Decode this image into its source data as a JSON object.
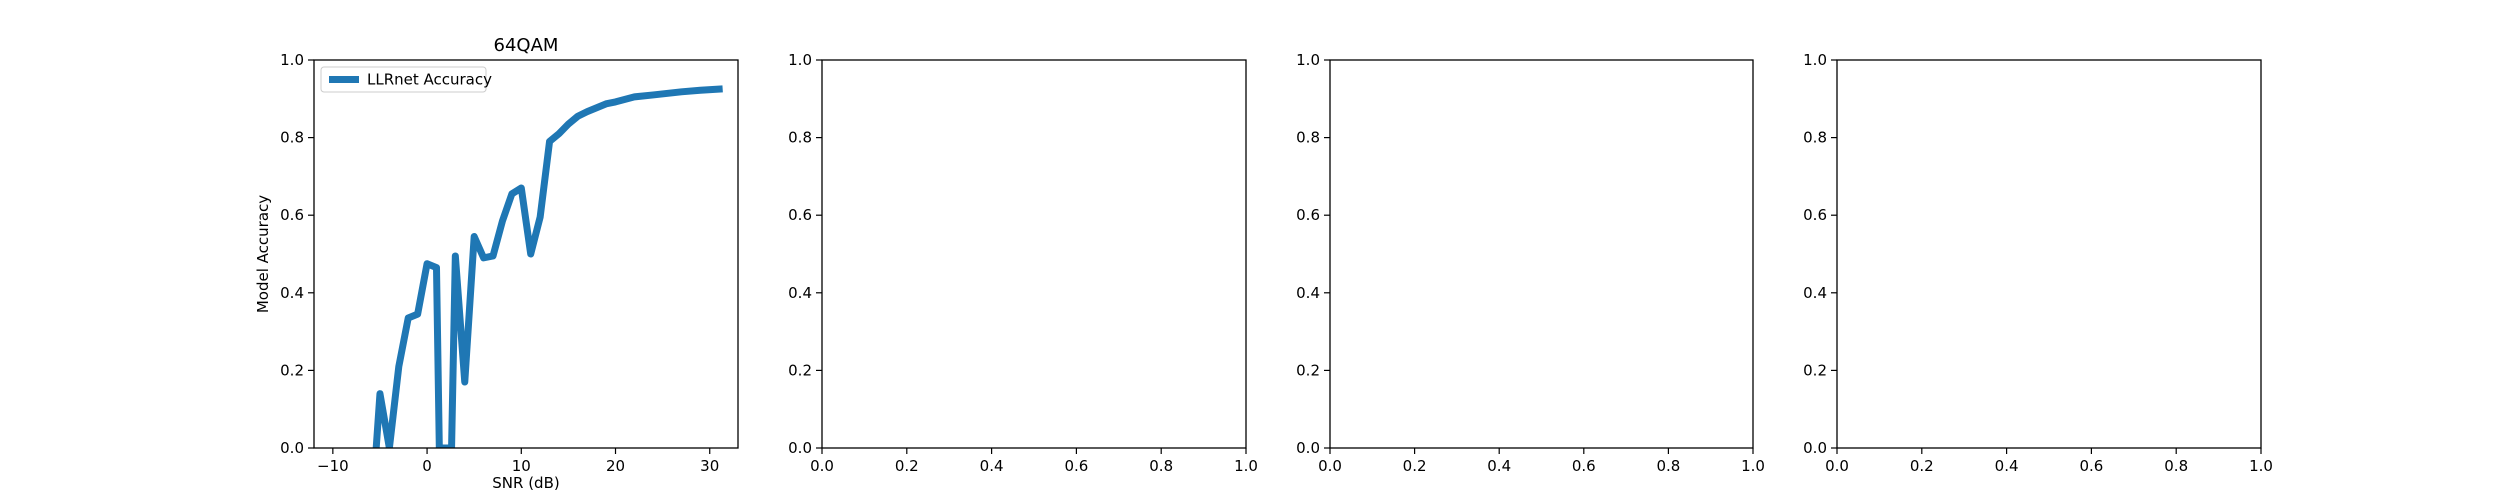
{
  "chart_data": [
    {
      "type": "line",
      "title": "64QAM",
      "xlabel": "SNR (dB)",
      "ylabel": "Model Accuracy",
      "xlim": [
        -12,
        33
      ],
      "ylim": [
        0,
        1
      ],
      "xticks": [
        -10,
        0,
        10,
        20,
        30
      ],
      "yticks": [
        0.0,
        0.2,
        0.4,
        0.6,
        0.8,
        1.0
      ],
      "xtick_labels": [
        "−10",
        "0",
        "10",
        "20",
        "30"
      ],
      "ytick_labels": [
        "0.0",
        "0.2",
        "0.4",
        "0.6",
        "0.8",
        "1.0"
      ],
      "grid": false,
      "legend": "upper-left",
      "series": [
        {
          "name": "LLRnet Accuracy",
          "color": "#1f77b4",
          "x": [
            -5.4,
            -5.0,
            -4.0,
            -3.0,
            -2.0,
            -1.0,
            0.0,
            1.0,
            1.3,
            2.6,
            3.0,
            4.0,
            5.0,
            6.0,
            7.0,
            8.0,
            9.0,
            10.0,
            11.0,
            12.0,
            13.0,
            14.0,
            15.0,
            16.0,
            17.0,
            18.0,
            19.0,
            20.0,
            22.0,
            24.0,
            27.0,
            29.0,
            31.0
          ],
          "y": [
            0.0,
            0.14,
            0.0,
            0.21,
            0.335,
            0.345,
            0.475,
            0.465,
            0.0,
            0.0,
            0.495,
            0.17,
            0.545,
            0.49,
            0.495,
            0.585,
            0.655,
            0.67,
            0.5,
            0.595,
            0.79,
            0.81,
            0.835,
            0.855,
            0.867,
            0.877,
            0.887,
            0.892,
            0.905,
            0.91,
            0.918,
            0.922,
            0.925
          ]
        }
      ]
    },
    {
      "type": "line",
      "title": "",
      "xlabel": "",
      "ylabel": "",
      "xlim": [
        0,
        1
      ],
      "ylim": [
        0,
        1
      ],
      "xticks": [
        0.0,
        0.2,
        0.4,
        0.6,
        0.8,
        1.0
      ],
      "yticks": [
        0.0,
        0.2,
        0.4,
        0.6,
        0.8,
        1.0
      ],
      "xtick_labels": [
        "0.0",
        "0.2",
        "0.4",
        "0.6",
        "0.8",
        "1.0"
      ],
      "ytick_labels": [
        "0.0",
        "0.2",
        "0.4",
        "0.6",
        "0.8",
        "1.0"
      ],
      "grid": false,
      "series": []
    },
    {
      "type": "line",
      "title": "",
      "xlabel": "",
      "ylabel": "",
      "xlim": [
        0,
        1
      ],
      "ylim": [
        0,
        1
      ],
      "xticks": [
        0.0,
        0.2,
        0.4,
        0.6,
        0.8,
        1.0
      ],
      "yticks": [
        0.0,
        0.2,
        0.4,
        0.6,
        0.8,
        1.0
      ],
      "xtick_labels": [
        "0.0",
        "0.2",
        "0.4",
        "0.6",
        "0.8",
        "1.0"
      ],
      "ytick_labels": [
        "0.0",
        "0.2",
        "0.4",
        "0.6",
        "0.8",
        "1.0"
      ],
      "grid": false,
      "series": []
    },
    {
      "type": "line",
      "title": "",
      "xlabel": "",
      "ylabel": "",
      "xlim": [
        0,
        1
      ],
      "ylim": [
        0,
        1
      ],
      "xticks": [
        0.0,
        0.2,
        0.4,
        0.6,
        0.8,
        1.0
      ],
      "yticks": [
        0.0,
        0.2,
        0.4,
        0.6,
        0.8,
        1.0
      ],
      "xtick_labels": [
        "0.0",
        "0.2",
        "0.4",
        "0.6",
        "0.8",
        "1.0"
      ],
      "ytick_labels": [
        "0.0",
        "0.2",
        "0.4",
        "0.6",
        "0.8",
        "1.0"
      ],
      "grid": false,
      "series": []
    }
  ]
}
